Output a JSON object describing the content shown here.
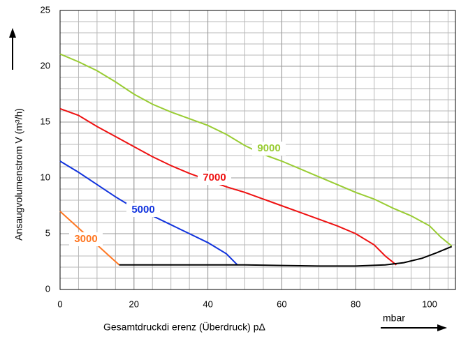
{
  "chart_data": {
    "type": "line",
    "y_label": "Ansaugvolumenstrom V (m³/h)",
    "x_label": "Gesamtdruckdi erenz (Überdruck)  pΔ",
    "x_unit": "mbar",
    "xlim": [
      0,
      107
    ],
    "ylim": [
      0,
      25
    ],
    "xticks": [
      0,
      20,
      40,
      60,
      80,
      100
    ],
    "yticks": [
      0,
      5,
      10,
      15,
      20,
      25
    ],
    "grid": true,
    "series": [
      {
        "name": "9000",
        "color": "#99cc33",
        "x": [
          0,
          5,
          10,
          15,
          20,
          25,
          30,
          35,
          40,
          45,
          50,
          55,
          60,
          65,
          70,
          75,
          80,
          85,
          90,
          95,
          100,
          103,
          106
        ],
        "values": [
          21.1,
          20.4,
          19.6,
          18.6,
          17.5,
          16.6,
          15.9,
          15.3,
          14.7,
          13.9,
          12.9,
          12.1,
          11.5,
          10.8,
          10.1,
          9.4,
          8.7,
          8.1,
          7.3,
          6.6,
          5.7,
          4.7,
          3.9
        ]
      },
      {
        "name": "7000",
        "color": "#ee1111",
        "x": [
          0,
          5,
          10,
          15,
          20,
          25,
          30,
          35,
          40,
          45,
          50,
          55,
          60,
          65,
          70,
          75,
          80,
          85,
          88,
          91
        ],
        "values": [
          16.2,
          15.6,
          14.6,
          13.7,
          12.8,
          11.9,
          11.1,
          10.4,
          9.8,
          9.2,
          8.7,
          8.1,
          7.5,
          6.9,
          6.3,
          5.7,
          5.0,
          4.0,
          3.0,
          2.2
        ]
      },
      {
        "name": "5000",
        "color": "#1133dd",
        "x": [
          0,
          5,
          10,
          15,
          20,
          25,
          30,
          35,
          40,
          45,
          48
        ],
        "values": [
          11.5,
          10.5,
          9.4,
          8.3,
          7.3,
          6.6,
          5.8,
          5.0,
          4.2,
          3.2,
          2.2
        ]
      },
      {
        "name": "3000",
        "color": "#ff7722",
        "x": [
          0,
          5,
          10,
          14,
          16
        ],
        "values": [
          7.0,
          5.5,
          4.0,
          2.8,
          2.2
        ]
      },
      {
        "color": "#000000",
        "x": [
          16,
          30,
          50,
          60,
          70,
          80,
          88,
          93,
          98,
          102,
          106
        ],
        "values": [
          2.2,
          2.2,
          2.2,
          2.15,
          2.1,
          2.1,
          2.2,
          2.4,
          2.8,
          3.3,
          3.85
        ]
      }
    ]
  }
}
